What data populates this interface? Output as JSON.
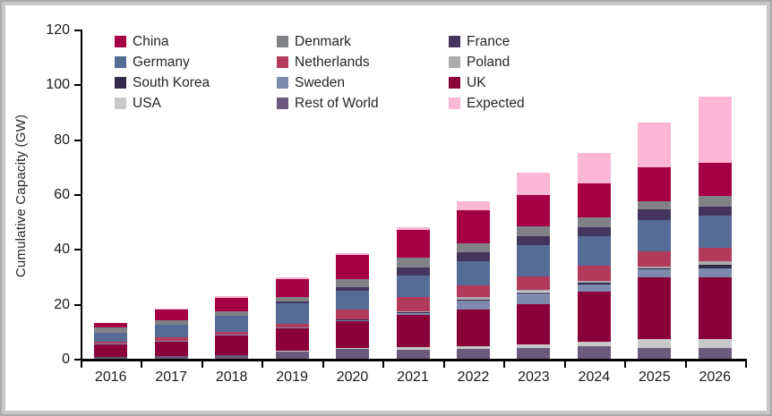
{
  "window": {
    "background": "#ffffff",
    "frame_color": "#c6c6c6"
  },
  "chart_data": {
    "type": "bar",
    "stacked": true,
    "title": "",
    "xlabel": "",
    "ylabel": "Cumulative Capacity (GW)",
    "ylim": [
      0,
      120
    ],
    "yticks": [
      0,
      20,
      40,
      60,
      80,
      100,
      120
    ],
    "grid": false,
    "legend_position": "top-left-inside",
    "categories": [
      "2016",
      "2017",
      "2018",
      "2019",
      "2020",
      "2021",
      "2022",
      "2023",
      "2024",
      "2025",
      "2026"
    ],
    "series": [
      {
        "name": "China",
        "color": "#A60045",
        "values": [
          1.9,
          3.8,
          4.9,
          6.4,
          8.9,
          9.9,
          12.0,
          11.5,
          12.4,
          12.3,
          12.2
        ]
      },
      {
        "name": "Denmark",
        "color": "#808285",
        "values": [
          1.9,
          1.7,
          1.7,
          1.8,
          3.0,
          3.5,
          3.3,
          3.6,
          3.5,
          3.2,
          3.9
        ]
      },
      {
        "name": "France",
        "color": "#44355E",
        "values": [
          0,
          0,
          0,
          0.5,
          1.1,
          3.2,
          3.3,
          3.2,
          3.3,
          3.7,
          3.3
        ]
      },
      {
        "name": "Germany",
        "color": "#546C96",
        "values": [
          3.3,
          4.6,
          5.7,
          7.6,
          6.9,
          7.7,
          8.7,
          11.5,
          10.7,
          11.4,
          11.8
        ]
      },
      {
        "name": "Netherlands",
        "color": "#B23A5C",
        "values": [
          0.7,
          1.1,
          1.1,
          1.2,
          3.5,
          5.2,
          4.4,
          4.9,
          5.5,
          5.5,
          4.6
        ]
      },
      {
        "name": "Poland",
        "color": "#ABABAD",
        "values": [
          0,
          0,
          0,
          0,
          0,
          0.2,
          0.8,
          0.7,
          0.8,
          0.6,
          1.6
        ]
      },
      {
        "name": "South Korea",
        "color": "#33294A",
        "values": [
          0,
          0,
          0,
          0,
          0.1,
          0.1,
          0.2,
          0.4,
          0.4,
          0.5,
          1.0
        ]
      },
      {
        "name": "Sweden",
        "color": "#7D8AAE",
        "values": [
          0.3,
          0.3,
          0.3,
          0.4,
          0.6,
          0.9,
          3.6,
          3.9,
          2.8,
          2.8,
          3.3
        ]
      },
      {
        "name": "UK",
        "color": "#8A0139",
        "values": [
          4.6,
          5.4,
          7.1,
          8.3,
          10.0,
          11.9,
          13.3,
          14.8,
          18.1,
          22.6,
          22.6
        ]
      },
      {
        "name": "USA",
        "color": "#C8C8CA",
        "values": [
          0,
          0,
          0,
          0.1,
          0.3,
          0.8,
          0.9,
          1.3,
          1.6,
          3.4,
          3.4
        ]
      },
      {
        "name": "Rest of World",
        "color": "#6A5A7C",
        "values": [
          0.5,
          0.9,
          1.4,
          2.7,
          3.5,
          3.4,
          3.6,
          3.9,
          4.7,
          3.8,
          3.8
        ]
      },
      {
        "name": "Expected",
        "color": "#FBB7D3",
        "values": [
          0,
          0.4,
          0.5,
          0.6,
          0.6,
          1.3,
          3.3,
          8.2,
          11.2,
          16.3,
          23.9
        ]
      }
    ],
    "stack_order": [
      "Rest of World",
      "USA",
      "UK",
      "Sweden",
      "South Korea",
      "Poland",
      "Netherlands",
      "Germany",
      "France",
      "Denmark",
      "China",
      "Expected"
    ]
  }
}
